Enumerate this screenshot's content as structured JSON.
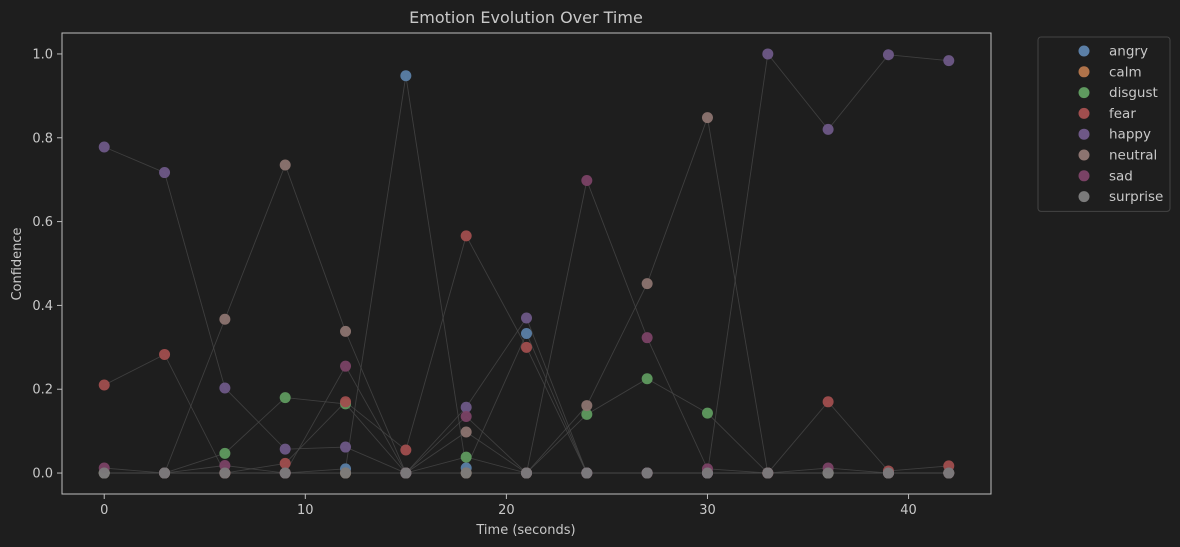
{
  "chart_data": {
    "type": "scatter",
    "title": "Emotion Evolution Over Time",
    "xlabel": "Time (seconds)",
    "ylabel": "Confidence",
    "xlim": [
      -2.1,
      44.1
    ],
    "ylim": [
      -0.05,
      1.05
    ],
    "x_ticks": [
      0,
      10,
      20,
      30,
      40
    ],
    "x_tick_labels": [
      "0",
      "10",
      "20",
      "30",
      "40"
    ],
    "y_ticks": [
      0.0,
      0.2,
      0.4,
      0.6,
      0.8,
      1.0
    ],
    "y_tick_labels": [
      "0.0",
      "0.2",
      "0.4",
      "0.6",
      "0.8",
      "1.0"
    ],
    "grid": false,
    "legend_position": "outside-top-right",
    "x": [
      0,
      3,
      6,
      9,
      12,
      15,
      18,
      21,
      24,
      27,
      30,
      33,
      36,
      39,
      42
    ],
    "series": [
      {
        "name": "angry",
        "color": "#5b7fa6",
        "values": [
          0.0,
          0.0,
          0.0,
          0.0,
          0.01,
          0.948,
          0.012,
          0.333,
          0.0,
          0.0,
          0.0,
          0.0,
          0.0,
          0.0,
          0.0
        ]
      },
      {
        "name": "calm",
        "color": "#b0734a",
        "values": [
          0.0,
          0.0,
          0.0,
          0.0,
          0.0,
          0.0,
          0.0,
          0.0,
          0.0,
          0.0,
          0.0,
          0.0,
          0.0,
          0.0,
          0.0
        ]
      },
      {
        "name": "disgust",
        "color": "#5f9a5f",
        "values": [
          0.0,
          0.0,
          0.047,
          0.18,
          0.165,
          0.0,
          0.038,
          0.0,
          0.14,
          0.225,
          0.143,
          0.0,
          0.0,
          0.0,
          0.0
        ]
      },
      {
        "name": "fear",
        "color": "#a04e4e",
        "values": [
          0.21,
          0.283,
          0.0,
          0.023,
          0.17,
          0.055,
          0.566,
          0.3,
          0.0,
          0.0,
          0.0,
          0.0,
          0.17,
          0.005,
          0.017
        ]
      },
      {
        "name": "happy",
        "color": "#6e5887",
        "values": [
          0.778,
          0.717,
          0.203,
          0.057,
          0.062,
          0.0,
          0.157,
          0.37,
          0.0,
          0.0,
          0.0,
          1.0,
          0.82,
          0.998,
          0.984
        ]
      },
      {
        "name": "neutral",
        "color": "#8c7470",
        "values": [
          0.0,
          0.0,
          0.367,
          0.735,
          0.338,
          0.0,
          0.098,
          0.0,
          0.161,
          0.452,
          0.848,
          0.0,
          0.0,
          0.0,
          0.0
        ]
      },
      {
        "name": "sad",
        "color": "#7a4265",
        "values": [
          0.012,
          0.0,
          0.018,
          0.0,
          0.255,
          0.0,
          0.135,
          0.0,
          0.698,
          0.323,
          0.01,
          0.0,
          0.012,
          0.0,
          0.0
        ]
      },
      {
        "name": "surprise",
        "color": "#7b7b7b",
        "values": [
          0.0,
          0.0,
          0.0,
          0.0,
          0.0,
          0.0,
          0.0,
          0.0,
          0.0,
          0.0,
          0.0,
          0.0,
          0.0,
          0.0,
          0.0
        ]
      }
    ]
  }
}
